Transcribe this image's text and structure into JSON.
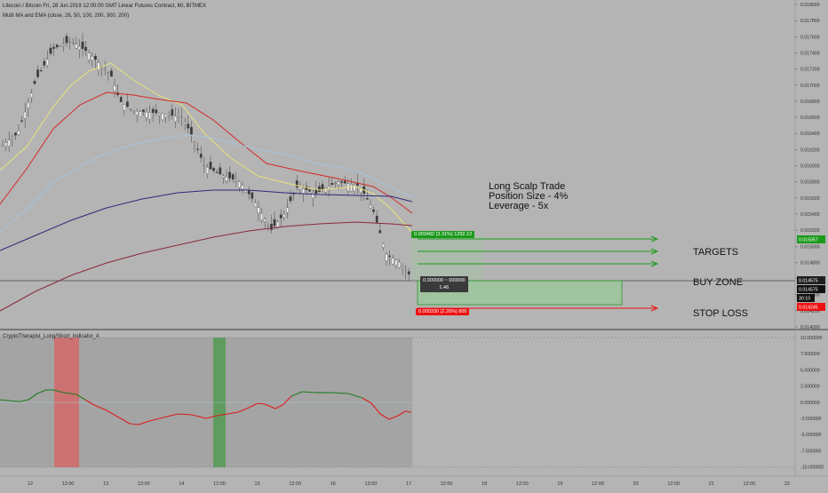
{
  "header": {
    "title": "Litecoin / Bitcoin Fri, 28 Jun 2019 12:00:00 GMT Linear Futures Contract, 60, BITMEX",
    "indicator": "Multi MA and EMA (close, 26, 50, 100, 200, 300, 200)"
  },
  "oscillator": {
    "title": "CryptoTherapist_Long/Short_Indicator_4"
  },
  "annotation": {
    "line1": "Long Scalp Trade",
    "line2": "Position Size - 4%",
    "line3": "Leverage - 5x"
  },
  "labels": {
    "targets": "TARGETS",
    "buy_zone": "BUY ZONE",
    "stop_loss": "STOP LOSS"
  },
  "position_tool": {
    "profit_label": "0.000482 (3.31%) 1292.12",
    "entry_line1": "0.000000 ~ 000000",
    "entry_line2": "1.46",
    "loss_label": "0.000330 (2.26%) 800"
  },
  "price_axis": {
    "ticks": [
      "0.018000",
      "0.017800",
      "0.017600",
      "0.017400",
      "0.017200",
      "0.017000",
      "0.016800",
      "0.016600",
      "0.016400",
      "0.016200",
      "0.016000",
      "0.015800",
      "0.015600",
      "0.015400",
      "0.015200",
      "0.015000",
      "0.014800",
      "0.014600",
      "0.014400",
      "0.014200",
      "0.014000"
    ],
    "tag_target": "0.015057",
    "tag_last": "0.014575",
    "tag_entry": "0.014575",
    "tag_countdown": "30:10",
    "tag_stop": "0.014245"
  },
  "osc_axis": {
    "ticks": [
      "10.000000",
      "7.500000",
      "5.000000",
      "2.500000",
      "0.000000",
      "-2.500000",
      "-5.000000",
      "-7.500000",
      "-10.000000"
    ]
  },
  "time_axis": {
    "ticks": [
      "12",
      "12:00",
      "13",
      "12:00",
      "14",
      "12:00",
      "15",
      "12:00",
      "16",
      "12:00",
      "17",
      "12:00",
      "18",
      "12:00",
      "19",
      "12:00",
      "20",
      "12:00",
      "21",
      "12:00",
      "22"
    ]
  },
  "colors": {
    "background": "#b4b4b4",
    "ema_yellow": "#e8e27a",
    "ema_red": "#d42a2a",
    "ma_lightblue": "#a8c4dc",
    "ma_navy": "#2a2a7a",
    "ma_darkred": "#8a2a3a",
    "profit_green": "#1a9a1a",
    "loss_red": "#ee1111",
    "osc_green": "#1e7a1e",
    "osc_red": "#dd1c1c"
  }
}
